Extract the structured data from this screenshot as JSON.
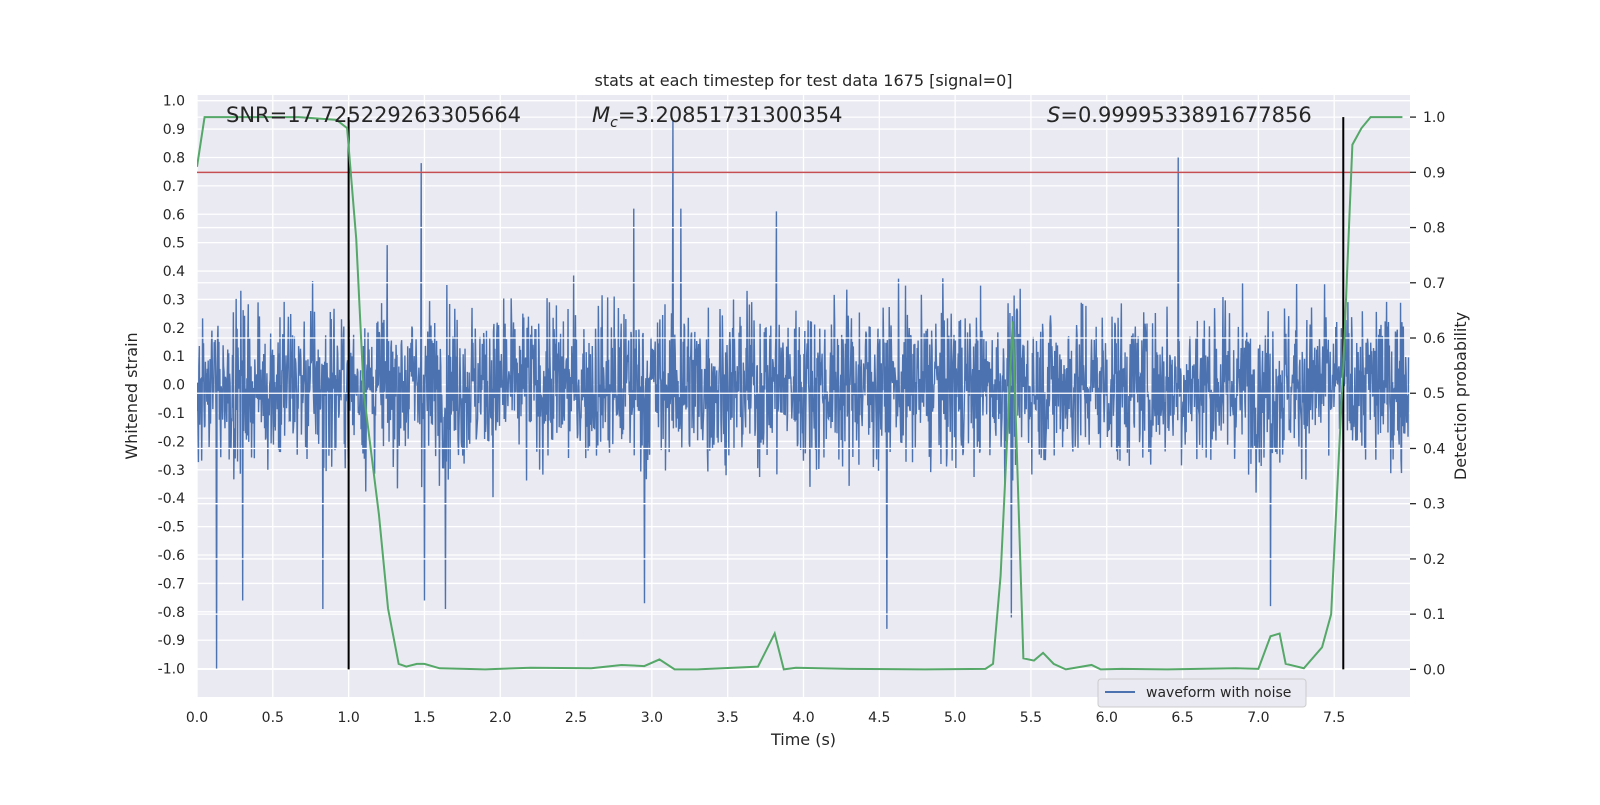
{
  "chart_data": {
    "type": "line",
    "title": "stats at each timestep for test data 1675 [signal=0]",
    "xlabel": "Time (s)",
    "ylabel_left": "Whitened strain",
    "ylabel_right": "Detection probability",
    "xlim": [
      0.0,
      8.0
    ],
    "ylim_left": [
      -1.1,
      1.02
    ],
    "ylim_right": [
      -0.05,
      1.04
    ],
    "x_ticks": [
      "0.0",
      "0.5",
      "1.0",
      "1.5",
      "2.0",
      "2.5",
      "3.0",
      "3.5",
      "4.0",
      "4.5",
      "5.0",
      "5.5",
      "6.0",
      "6.5",
      "7.0",
      "7.5"
    ],
    "y_left_ticks": [
      "1.0",
      "0.9",
      "0.8",
      "0.7",
      "0.6",
      "0.5",
      "0.4",
      "0.3",
      "0.2",
      "0.1",
      "0.0",
      "-0.1",
      "-0.2",
      "-0.3",
      "-0.4",
      "-0.5",
      "-0.6",
      "-0.7",
      "-0.8",
      "-0.9",
      "-1.0"
    ],
    "y_right_ticks": [
      "1.0",
      "0.9",
      "0.8",
      "0.7",
      "0.6",
      "0.5",
      "0.4",
      "0.3",
      "0.2",
      "0.1",
      "0.0"
    ],
    "grid": true,
    "legend_position": "bottom-right",
    "legend_entries": [
      "waveform with noise"
    ],
    "annotations": {
      "snr": "SNR=17.725229263305664",
      "mc_symbol": "M",
      "mc_sub": "c",
      "mc_value": "=3.20851731300354",
      "s_symbol": "S",
      "s_value": "=0.9999533891677856"
    },
    "threshold": {
      "value": 0.9,
      "axis": "right",
      "color": "#c44e52"
    },
    "vertical_lines": [
      {
        "x": 1.0,
        "y_right_range": [
          0.0,
          1.0
        ],
        "color": "#000000"
      },
      {
        "x": 7.56,
        "y_right_range": [
          0.0,
          1.0
        ],
        "color": "#000000"
      }
    ],
    "colors": {
      "waveform": "#4c72b0",
      "probability": "#55a868",
      "background": "#eaeaf2",
      "grid": "#ffffff"
    },
    "series": [
      {
        "name": "waveform with noise",
        "axis": "left",
        "kind": "noise_trace",
        "x_range": [
          0.0,
          7.99
        ],
        "typical_range": [
          -0.42,
          0.52
        ],
        "peaks": [
          {
            "x": 0.13,
            "y": -1.0
          },
          {
            "x": 0.3,
            "y": -0.76
          },
          {
            "x": 0.83,
            "y": -0.79
          },
          {
            "x": 1.48,
            "y": 0.78
          },
          {
            "x": 1.5,
            "y": 0.83
          },
          {
            "x": 1.5,
            "y": -0.76
          },
          {
            "x": 1.64,
            "y": -0.79
          },
          {
            "x": 2.88,
            "y": 0.62
          },
          {
            "x": 2.95,
            "y": -0.77
          },
          {
            "x": 3.14,
            "y": 0.93
          },
          {
            "x": 3.19,
            "y": 0.62
          },
          {
            "x": 3.82,
            "y": 0.61
          },
          {
            "x": 4.55,
            "y": -0.86
          },
          {
            "x": 5.37,
            "y": -0.82
          },
          {
            "x": 6.47,
            "y": 0.8
          },
          {
            "x": 7.08,
            "y": -0.78
          }
        ]
      },
      {
        "name": "",
        "axis": "right",
        "x": [
          0.0,
          0.05,
          0.33,
          0.67,
          0.92,
          0.99,
          1.05,
          1.1,
          1.2,
          1.26,
          1.33,
          1.38,
          1.45,
          1.5,
          1.6,
          1.9,
          2.2,
          2.6,
          2.8,
          2.95,
          3.05,
          3.15,
          3.3,
          3.7,
          3.81,
          3.87,
          3.95,
          4.3,
          4.8,
          5.2,
          5.25,
          5.3,
          5.38,
          5.45,
          5.52,
          5.58,
          5.65,
          5.73,
          5.9,
          5.96,
          6.1,
          6.4,
          6.85,
          7.0,
          7.08,
          7.14,
          7.18,
          7.3,
          7.42,
          7.48,
          7.56,
          7.62,
          7.68,
          7.74,
          7.8,
          7.87,
          7.95
        ],
        "values": [
          0.91,
          1.0,
          1.0,
          1.0,
          0.995,
          0.98,
          0.78,
          0.5,
          0.28,
          0.11,
          0.01,
          0.005,
          0.01,
          0.01,
          0.002,
          0.0,
          0.003,
          0.002,
          0.008,
          0.006,
          0.018,
          0.0,
          0.0,
          0.005,
          0.065,
          0.0,
          0.003,
          0.001,
          0.0,
          0.001,
          0.01,
          0.17,
          0.63,
          0.02,
          0.016,
          0.03,
          0.01,
          0.0,
          0.008,
          0.0,
          0.001,
          0.0,
          0.002,
          0.001,
          0.06,
          0.065,
          0.01,
          0.002,
          0.04,
          0.1,
          0.55,
          0.95,
          0.98,
          1.0,
          1.0,
          1.0,
          1.0
        ]
      }
    ]
  }
}
